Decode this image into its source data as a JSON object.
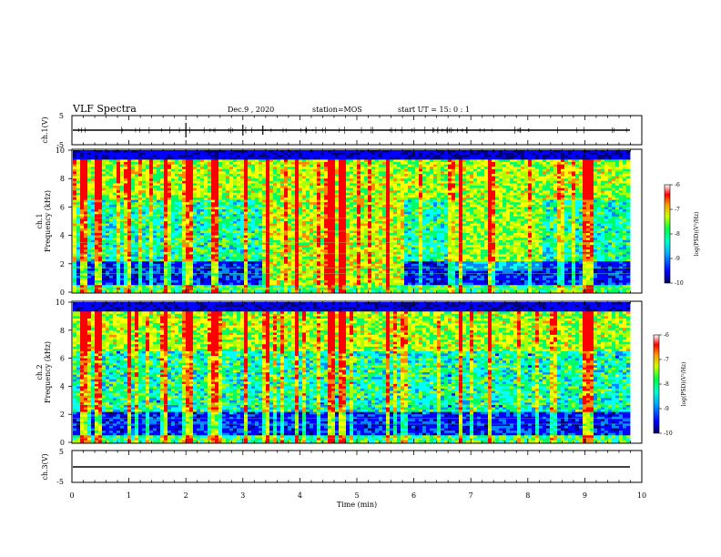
{
  "header": {
    "title": "VLF Spectra",
    "date": "Dec.9 , 2020",
    "station": "station=MOS",
    "start": "start UT =  15: 0 : 1"
  },
  "colorscale": [
    "#00007a",
    "#0000ff",
    "#0088ff",
    "#00ffff",
    "#00ff66",
    "#aaff00",
    "#ffff00",
    "#ff8800",
    "#ff0000",
    "#ffffff"
  ],
  "chart_data": [
    {
      "type": "line",
      "panel": "ch1-waveform",
      "ylabel": "ch.1(V)",
      "ylim": [
        -5,
        5
      ],
      "yticks": [
        "5",
        "-5"
      ],
      "x": [
        0,
        10
      ],
      "values": [
        0,
        0
      ]
    },
    {
      "type": "heatmap",
      "panel": "ch1-spectrogram",
      "ylabel": "ch.1",
      "ylabel2": "Frequency (kHz)",
      "ylim": [
        0,
        10
      ],
      "yticks": [
        "0",
        "2",
        "4",
        "6",
        "8",
        "10"
      ],
      "colorbar": {
        "label": "log(PSD)(V²/Hz)",
        "range": [
          -10,
          -6
        ],
        "ticks": [
          "-6",
          "-7",
          "-8",
          "-9",
          "-10"
        ]
      }
    },
    {
      "type": "heatmap",
      "panel": "ch2-spectrogram",
      "ylabel": "ch.2",
      "ylabel2": "Frequency (kHz)",
      "ylim": [
        0,
        10
      ],
      "yticks": [
        "0",
        "2",
        "4",
        "6",
        "8",
        "10"
      ],
      "colorbar": {
        "label": "log(PSD)(V²/Hz)",
        "range": [
          -10,
          -6
        ],
        "ticks": [
          "-6",
          "-7",
          "-8",
          "-9",
          "-10"
        ]
      }
    },
    {
      "type": "line",
      "panel": "ch3-waveform",
      "ylabel": "ch.3(V)",
      "ylim": [
        -5,
        5
      ],
      "yticks": [
        "5",
        "-5"
      ],
      "x": [
        0,
        10
      ],
      "values": [
        0,
        0
      ]
    }
  ],
  "xaxis": {
    "label": "Time (min)",
    "range": [
      0,
      10
    ],
    "ticks": [
      "0",
      "1",
      "2",
      "3",
      "4",
      "5",
      "6",
      "7",
      "8",
      "9",
      "10"
    ]
  }
}
